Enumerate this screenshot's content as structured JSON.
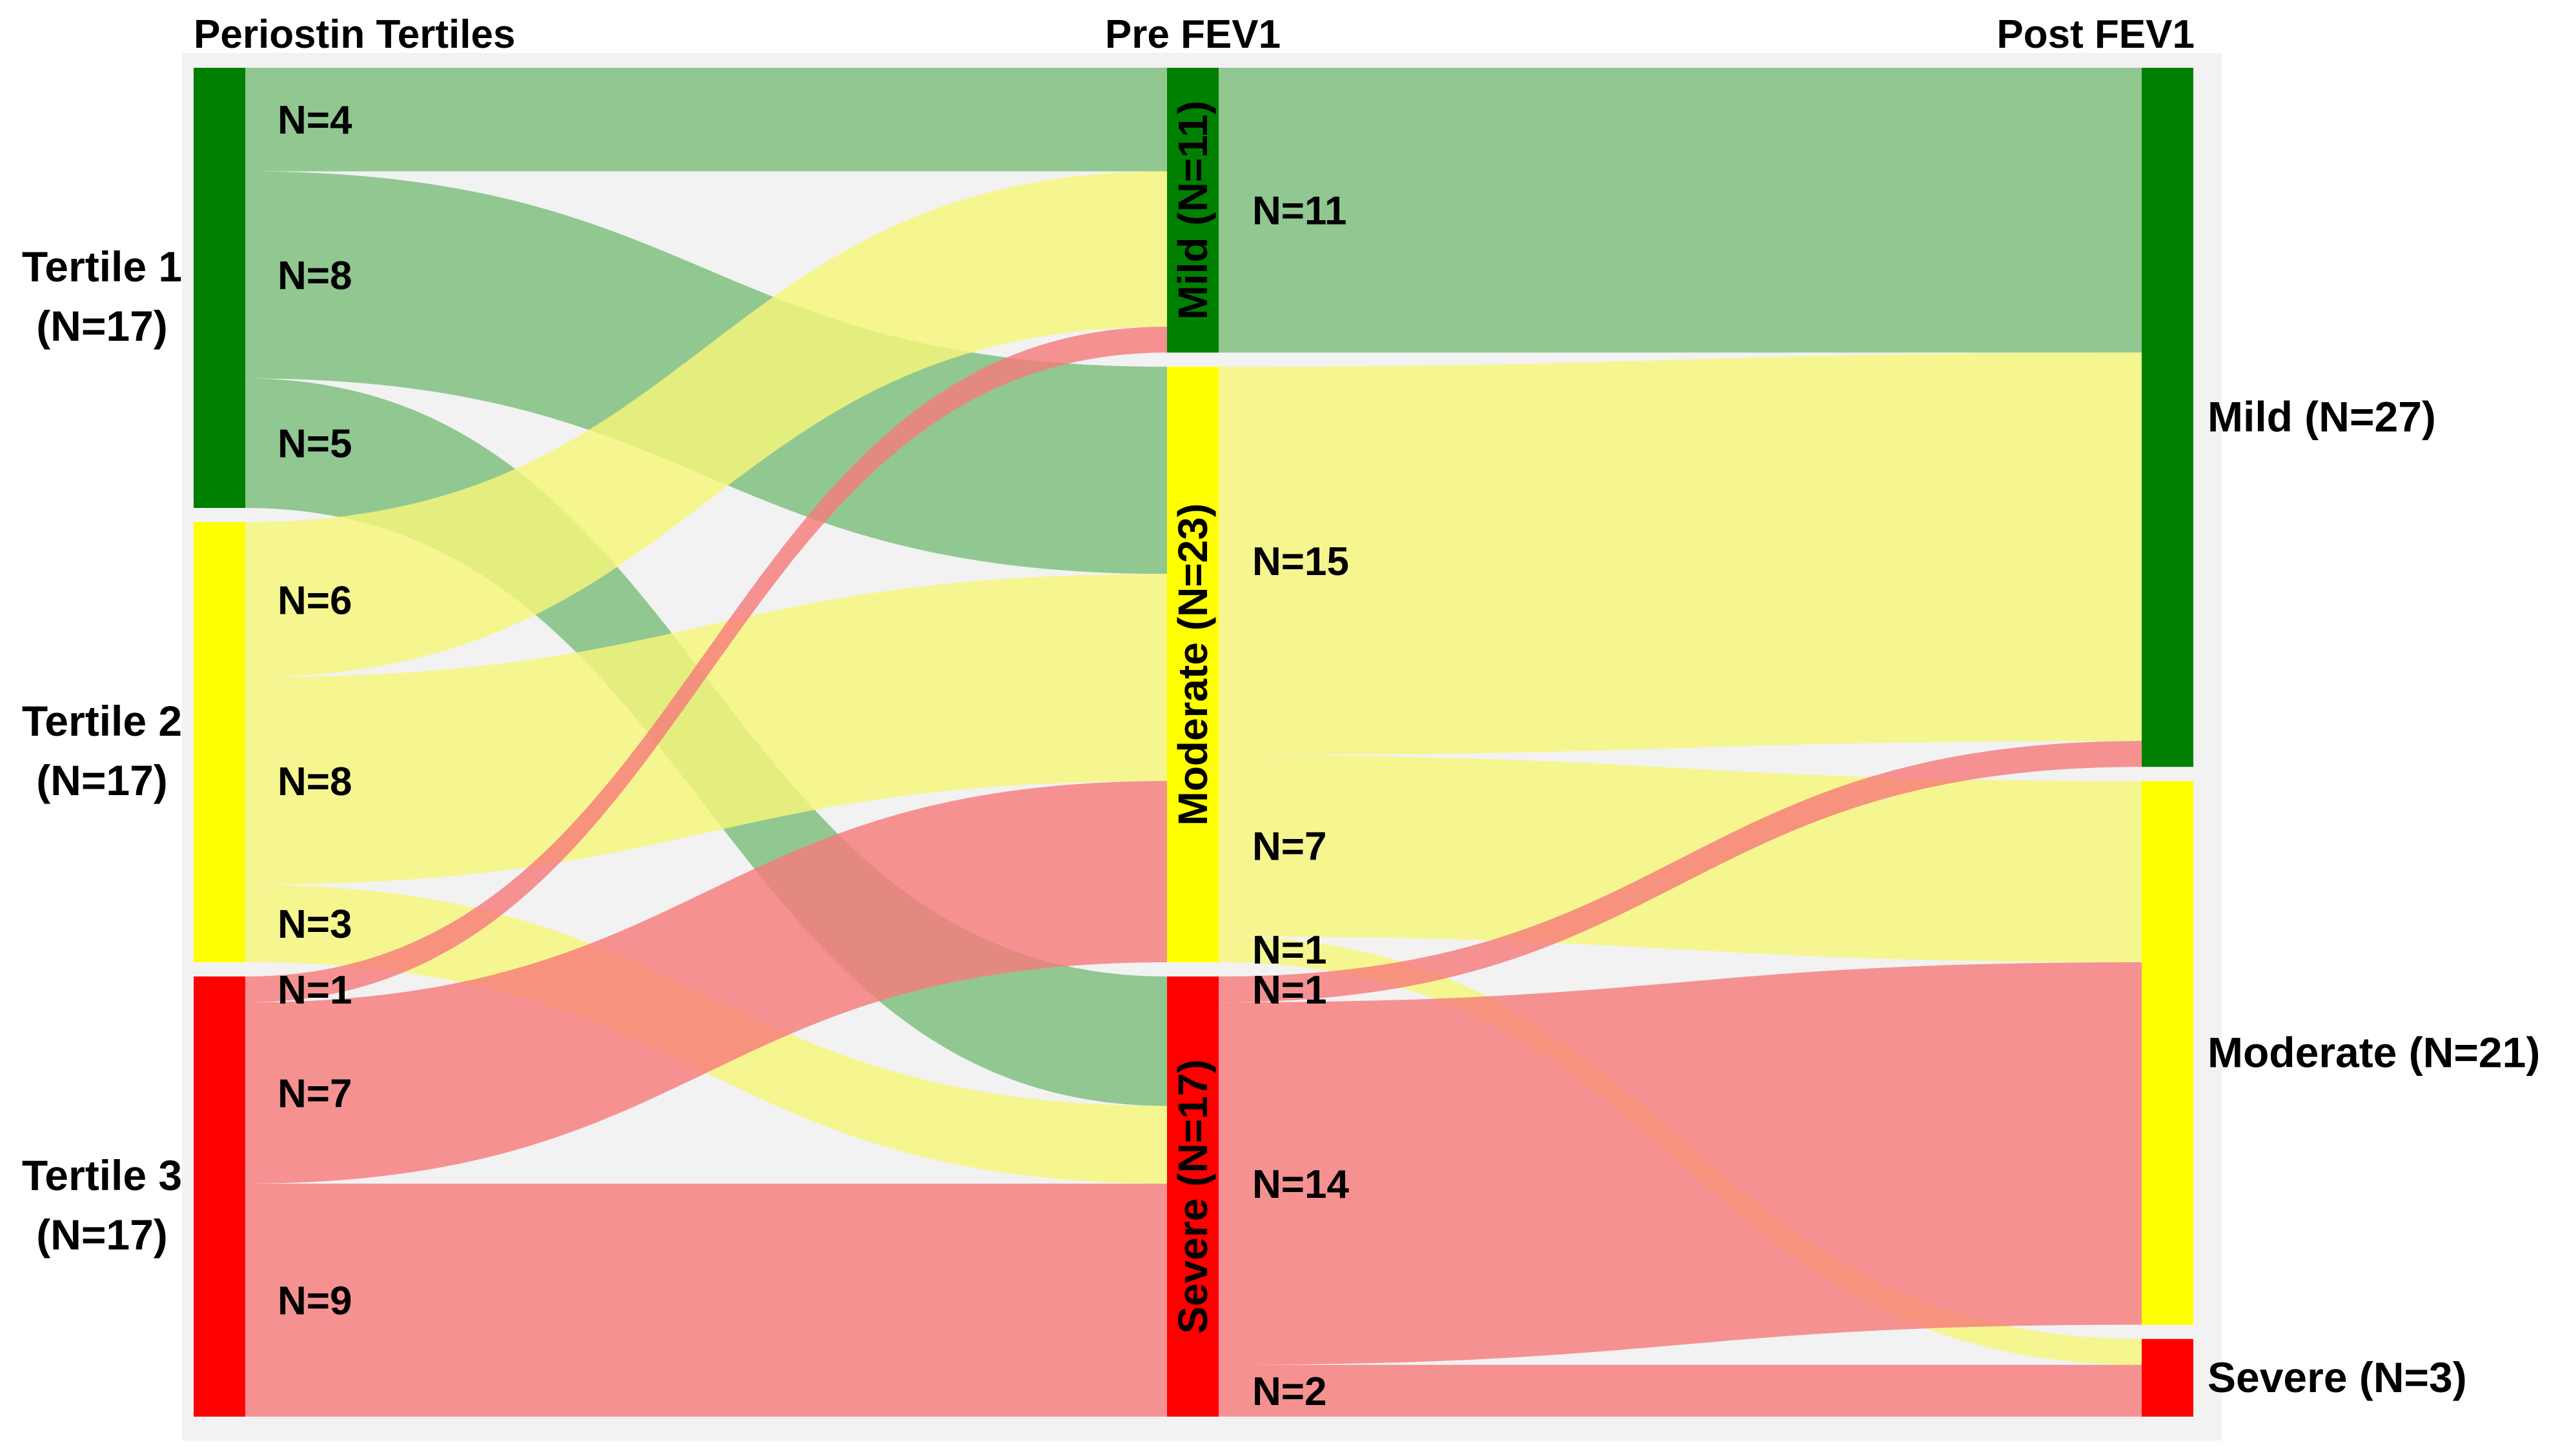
{
  "headers": {
    "left": "Periostin Tertiles",
    "middle": "Pre FEV1",
    "right": "Post FEV1"
  },
  "colors": {
    "green": "#008000",
    "yellow": "#ffff00",
    "red": "#ff0000",
    "green_link": "#7bbd7b",
    "yellow_link": "#f7f77a",
    "red_link": "#f77b7b",
    "panel_bg": "#f2f2f2"
  },
  "columns": {
    "tertiles": [
      {
        "id": "t1",
        "line1": "Tertile 1",
        "line2": "(N=17)",
        "color": "green"
      },
      {
        "id": "t2",
        "line1": "Tertile 2",
        "line2": "(N=17)",
        "color": "yellow"
      },
      {
        "id": "t3",
        "line1": "Tertile 3",
        "line2": "(N=17)",
        "color": "red"
      }
    ],
    "pre": [
      {
        "id": "pre_mild",
        "label": "Mild (N=11)",
        "color": "green"
      },
      {
        "id": "pre_mod",
        "label": "Moderate (N=23)",
        "color": "yellow"
      },
      {
        "id": "pre_sev",
        "label": "Severe (N=17)",
        "color": "red"
      }
    ],
    "post": [
      {
        "id": "post_mild",
        "label": "Mild (N=27)",
        "color": "green"
      },
      {
        "id": "post_mod",
        "label": "Moderate (N=21)",
        "color": "yellow"
      },
      {
        "id": "post_sev",
        "label": "Severe (N=3)",
        "color": "red"
      }
    ]
  },
  "flows_left": [
    {
      "from": "t1",
      "to": "pre_mild",
      "value": 4,
      "label": "N=4",
      "color": "green_link"
    },
    {
      "from": "t1",
      "to": "pre_mod",
      "value": 8,
      "label": "N=8",
      "color": "green_link"
    },
    {
      "from": "t1",
      "to": "pre_sev",
      "value": 5,
      "label": "N=5",
      "color": "green_link"
    },
    {
      "from": "t2",
      "to": "pre_mild",
      "value": 6,
      "label": "N=6",
      "color": "yellow_link"
    },
    {
      "from": "t2",
      "to": "pre_mod",
      "value": 8,
      "label": "N=8",
      "color": "yellow_link"
    },
    {
      "from": "t2",
      "to": "pre_sev",
      "value": 3,
      "label": "N=3",
      "color": "yellow_link"
    },
    {
      "from": "t3",
      "to": "pre_mild",
      "value": 1,
      "label": "N=1",
      "color": "red_link"
    },
    {
      "from": "t3",
      "to": "pre_mod",
      "value": 7,
      "label": "N=7",
      "color": "red_link"
    },
    {
      "from": "t3",
      "to": "pre_sev",
      "value": 9,
      "label": "N=9",
      "color": "red_link"
    }
  ],
  "flows_right": [
    {
      "from": "pre_mild",
      "to": "post_mild",
      "value": 11,
      "label": "N=11",
      "color": "green_link"
    },
    {
      "from": "pre_mod",
      "to": "post_mild",
      "value": 15,
      "label": "N=15",
      "color": "yellow_link"
    },
    {
      "from": "pre_mod",
      "to": "post_mod",
      "value": 7,
      "label": "N=7",
      "color": "yellow_link"
    },
    {
      "from": "pre_mod",
      "to": "post_sev",
      "value": 1,
      "label": "N=1",
      "color": "yellow_link"
    },
    {
      "from": "pre_sev",
      "to": "post_mild",
      "value": 1,
      "label": "N=1",
      "color": "red_link"
    },
    {
      "from": "pre_sev",
      "to": "post_mod",
      "value": 14,
      "label": "N=14",
      "color": "red_link"
    },
    {
      "from": "pre_sev",
      "to": "post_sev",
      "value": 2,
      "label": "N=2",
      "color": "red_link"
    }
  ]
}
